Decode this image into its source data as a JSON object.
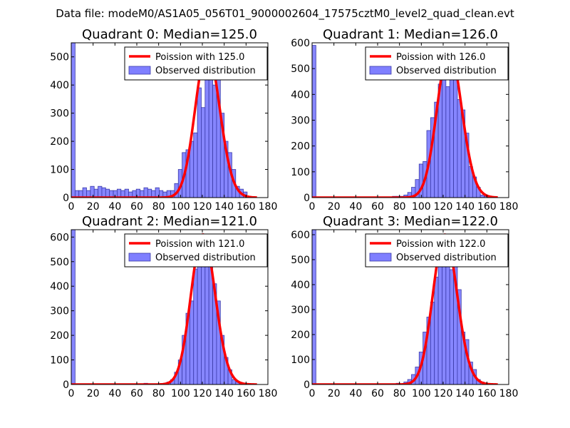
{
  "figure_title": "Data file: modeM0/AS1A05_056T01_9000002604_17575cztM0_level2_quad_clean.evt",
  "colors": {
    "bar_fill": "#7f7fff",
    "bar_edge": "#3a3aa8",
    "curve": "#ff0000",
    "axis": "#000000"
  },
  "chart_data": [
    {
      "type": "bar",
      "title": "Quadrant 0: Median=125.0",
      "xlim": [
        0,
        180
      ],
      "ylim": [
        0,
        550
      ],
      "xticks": [
        0,
        20,
        40,
        60,
        80,
        100,
        120,
        140,
        160,
        180
      ],
      "yticks": [
        0,
        100,
        200,
        300,
        400,
        500
      ],
      "legend": {
        "position": "top-right",
        "entries": [
          "Poission with 125.0",
          "Observed distribution"
        ]
      },
      "poisson_mean": 125.0,
      "curve_peak": 525,
      "bin_width": 3.5,
      "bins_start": [
        0,
        3.5,
        7,
        10.5,
        14,
        17.5,
        21,
        24.5,
        28,
        31.5,
        35,
        38.5,
        42,
        45.5,
        49,
        52.5,
        56,
        59.5,
        63,
        66.5,
        70,
        73.5,
        77,
        80.5,
        84,
        87.5,
        91,
        94.5,
        98,
        101.5,
        105,
        108.5,
        112,
        115.5,
        119,
        122.5,
        126,
        129.5,
        133,
        136.5,
        140,
        143.5,
        147,
        150.5,
        154,
        157.5,
        161
      ],
      "values": [
        550,
        25,
        25,
        35,
        25,
        40,
        30,
        40,
        35,
        30,
        25,
        25,
        30,
        25,
        30,
        20,
        25,
        30,
        25,
        35,
        30,
        25,
        35,
        25,
        20,
        25,
        25,
        50,
        100,
        160,
        170,
        200,
        230,
        390,
        320,
        430,
        480,
        400,
        440,
        300,
        200,
        160,
        100,
        40,
        30,
        20,
        5
      ]
    },
    {
      "type": "bar",
      "title": "Quadrant 1: Median=126.0",
      "xlim": [
        0,
        180
      ],
      "ylim": [
        0,
        600
      ],
      "xticks": [
        0,
        20,
        40,
        60,
        80,
        100,
        120,
        140,
        160,
        180
      ],
      "yticks": [
        0,
        100,
        200,
        300,
        400,
        500,
        600
      ],
      "legend": {
        "position": "top-right",
        "entries": [
          "Poission with 126.0",
          "Observed distribution"
        ]
      },
      "poisson_mean": 126.0,
      "curve_peak": 575,
      "bin_width": 3.5,
      "bins_start": [
        0,
        73.5,
        77,
        80.5,
        84,
        87.5,
        91,
        94.5,
        98,
        101.5,
        105,
        108.5,
        112,
        115.5,
        119,
        122.5,
        126,
        129.5,
        133,
        136.5,
        140,
        143.5,
        147,
        150.5,
        154,
        157.5
      ],
      "values": [
        590,
        5,
        5,
        5,
        10,
        20,
        40,
        70,
        130,
        140,
        260,
        310,
        370,
        440,
        460,
        430,
        560,
        460,
        380,
        340,
        250,
        120,
        80,
        40,
        10,
        5
      ]
    },
    {
      "type": "bar",
      "title": "Quadrant 2: Median=121.0",
      "xlim": [
        0,
        180
      ],
      "ylim": [
        0,
        630
      ],
      "xticks": [
        0,
        20,
        40,
        60,
        80,
        100,
        120,
        140,
        160,
        180
      ],
      "yticks": [
        0,
        100,
        200,
        300,
        400,
        500,
        600
      ],
      "legend": {
        "position": "top-right",
        "entries": [
          "Poission with 121.0",
          "Observed distribution"
        ]
      },
      "poisson_mean": 121.0,
      "curve_peak": 610,
      "bin_width": 3.5,
      "bins_start": [
        0,
        66.5,
        84,
        87.5,
        91,
        94.5,
        98,
        101.5,
        105,
        108.5,
        112,
        115.5,
        119,
        122.5,
        126,
        129.5,
        133,
        136.5,
        140,
        143.5,
        147,
        150.5,
        154
      ],
      "values": [
        635,
        5,
        5,
        10,
        20,
        50,
        100,
        200,
        290,
        340,
        470,
        530,
        590,
        500,
        480,
        410,
        340,
        200,
        110,
        60,
        20,
        10,
        5
      ]
    },
    {
      "type": "bar",
      "title": "Quadrant 3: Median=122.0",
      "xlim": [
        0,
        180
      ],
      "ylim": [
        0,
        620
      ],
      "xticks": [
        0,
        20,
        40,
        60,
        80,
        100,
        120,
        140,
        160,
        180
      ],
      "yticks": [
        0,
        100,
        200,
        300,
        400,
        500,
        600
      ],
      "legend": {
        "position": "top-right",
        "entries": [
          "Poission with 122.0",
          "Observed distribution"
        ]
      },
      "poisson_mean": 122.0,
      "curve_peak": 600,
      "bin_width": 3.5,
      "bins_start": [
        0,
        77,
        84,
        87.5,
        91,
        94.5,
        98,
        101.5,
        105,
        108.5,
        112,
        115.5,
        119,
        122.5,
        126,
        129.5,
        133,
        136.5,
        140,
        143.5,
        147,
        150.5,
        154,
        157.5
      ],
      "values": [
        620,
        5,
        10,
        20,
        40,
        70,
        130,
        210,
        270,
        330,
        430,
        500,
        580,
        550,
        460,
        480,
        380,
        210,
        180,
        90,
        60,
        20,
        10,
        5
      ]
    }
  ]
}
